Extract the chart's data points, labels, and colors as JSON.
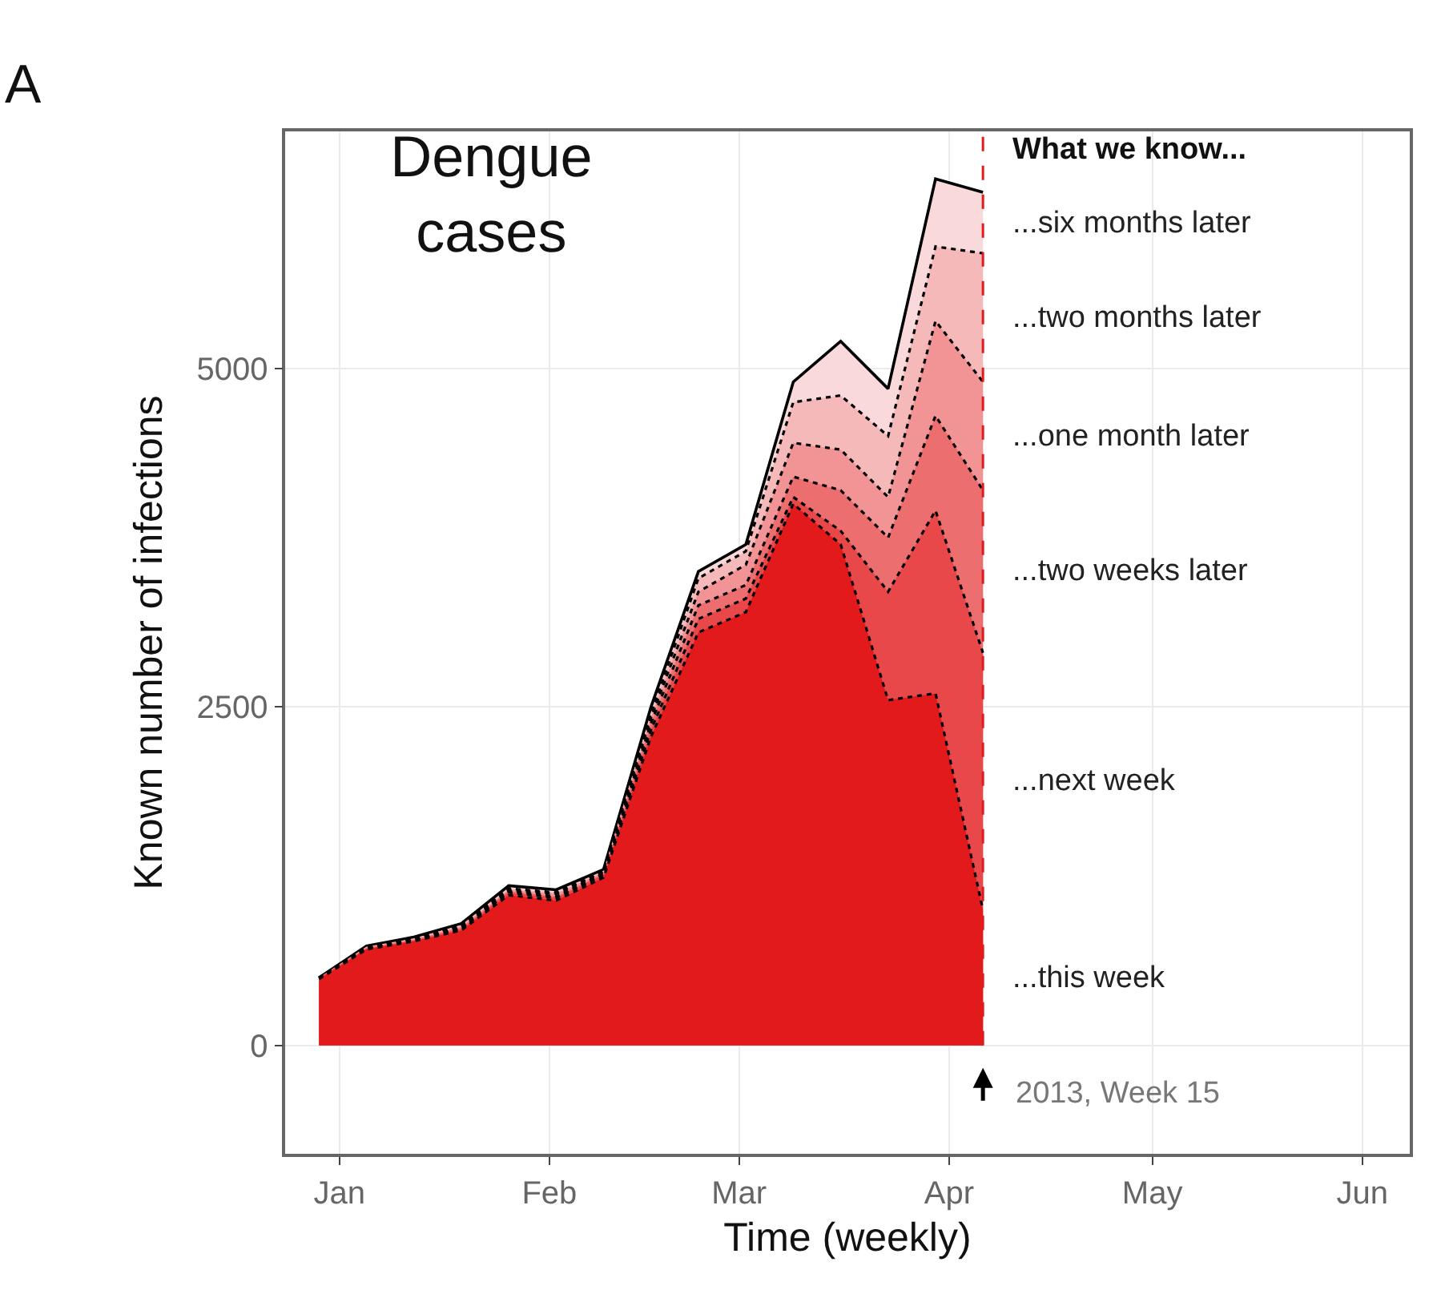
{
  "chart_data": {
    "type": "area",
    "title": "Dengue cases",
    "xlabel": "Time (weekly)",
    "ylabel": "Known number of infections",
    "legend_title": "What we know...",
    "x": [
      "2012-12-29",
      "2013-01-05",
      "2013-01-12",
      "2013-01-19",
      "2013-01-26",
      "2013-02-02",
      "2013-02-09",
      "2013-02-16",
      "2013-02-23",
      "2013-03-02",
      "2013-03-09",
      "2013-03-16",
      "2013-03-23",
      "2013-03-30",
      "2013-04-06"
    ],
    "series": [
      {
        "name": "...six months later",
        "color": "#f9d9da",
        "line_style": "solid",
        "values": [
          500,
          735,
          800,
          900,
          1180,
          1150,
          1300,
          2500,
          3500,
          3700,
          4900,
          5200,
          4850,
          6400,
          6300
        ]
      },
      {
        "name": "...two months later",
        "color": "#f6b9ba",
        "line_style": "dotted",
        "values": [
          500,
          730,
          790,
          890,
          1160,
          1130,
          1290,
          2450,
          3450,
          3650,
          4750,
          4800,
          4500,
          5900,
          5850
        ]
      },
      {
        "name": "...one month later",
        "color": "#f29495",
        "line_style": "dotted",
        "values": [
          500,
          725,
          785,
          880,
          1150,
          1120,
          1280,
          2420,
          3350,
          3550,
          4450,
          4400,
          4050,
          5350,
          4900
        ]
      },
      {
        "name": "...two weeks later",
        "color": "#ed6e6f",
        "line_style": "dotted",
        "values": [
          500,
          720,
          780,
          870,
          1140,
          1100,
          1270,
          2380,
          3250,
          3400,
          4200,
          4100,
          3750,
          4650,
          4100
        ]
      },
      {
        "name": "...next week",
        "color": "#e8484a",
        "line_style": "dotted",
        "values": [
          500,
          715,
          775,
          860,
          1130,
          1090,
          1260,
          2330,
          3150,
          3300,
          4050,
          3800,
          3350,
          3950,
          2900
        ]
      },
      {
        "name": "...this week",
        "color": "#e31a1c",
        "line_style": "dotted",
        "values": [
          490,
          710,
          770,
          850,
          1110,
          1070,
          1240,
          2280,
          3050,
          3200,
          4000,
          3700,
          2550,
          2600,
          1000
        ]
      }
    ],
    "xlim": [
      "2012-12-24",
      "2013-06-08"
    ],
    "xticks": [
      {
        "value": "2013-01-01",
        "label": "Jan"
      },
      {
        "value": "2013-02-01",
        "label": "Feb"
      },
      {
        "value": "2013-03-01",
        "label": "Mar"
      },
      {
        "value": "2013-04-01",
        "label": "Apr"
      },
      {
        "value": "2013-05-01",
        "label": "May"
      },
      {
        "value": "2013-06-01",
        "label": "Jun"
      }
    ],
    "ylim": [
      -800,
      6750
    ],
    "yticks": [
      0,
      2500,
      5000
    ],
    "ref_lines": [
      {
        "axis": "x",
        "value": "2013-04-06",
        "label": null,
        "line_style": "dashed",
        "color": "#e31a1c"
      }
    ],
    "annotations": [
      "A",
      {
        "text": "2013, Week 15",
        "x": "2013-04-06",
        "y": 0
      }
    ],
    "grid": true,
    "legend": false
  }
}
